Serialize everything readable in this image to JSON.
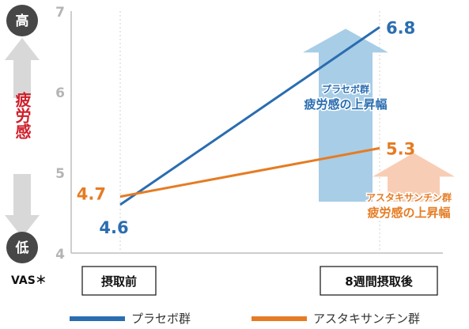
{
  "chart_data": {
    "type": "line",
    "categories": [
      "摂取前",
      "8週間摂取後"
    ],
    "series": [
      {
        "name": "プラセボ群",
        "values": [
          4.6,
          6.8
        ],
        "color": "#2a6db0"
      },
      {
        "name": "アスタキサンチン群",
        "values": [
          4.7,
          5.3
        ],
        "color": "#e57c24"
      }
    ],
    "ylim": [
      4,
      7
    ],
    "yticks": [
      4,
      5,
      6,
      7
    ],
    "ylabel": "疲労感",
    "y_high_label": "高",
    "y_low_label": "低",
    "x_axis_note": "VAS＊",
    "arrows": [
      {
        "series": "プラセボ群",
        "line1": "プラセボ群",
        "line2": "疲労感の上昇幅",
        "color": "#a8cde6",
        "text_color": "#2a6db0"
      },
      {
        "series": "アスタキサンチン群",
        "line1": "アスタキサンチン群",
        "line2": "疲労感の上昇幅",
        "color": "#f8cdb6",
        "text_color": "#e57c24"
      }
    ],
    "legend": [
      {
        "label": "プラセボ群",
        "color": "#2a6db0"
      },
      {
        "label": "アスタキサンチン群",
        "color": "#e57c24"
      }
    ],
    "legend_position": "bottom",
    "grid": "vertical-dotted"
  }
}
